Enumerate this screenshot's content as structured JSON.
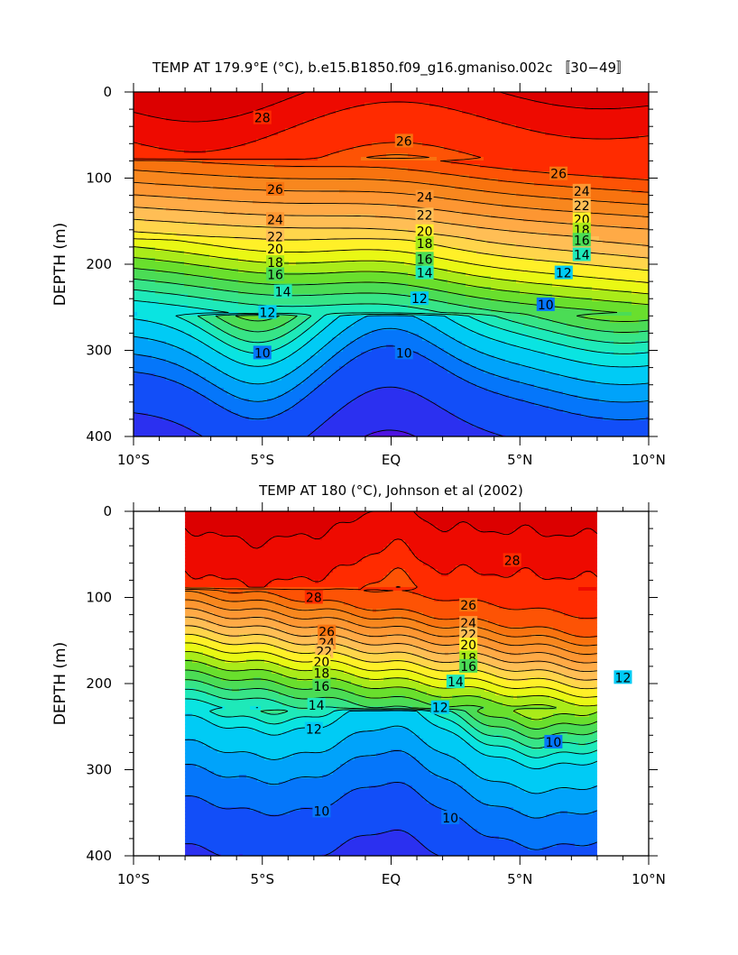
{
  "chart_data": [
    {
      "type": "contour",
      "title": "TEMP AT 179.9°E (°C), b.e15.B1850.f09_g16.gmaniso.002c 〚30−49〛",
      "xlabel": "",
      "ylabel": "DEPTH (m)",
      "x_ticks": [
        "10°S",
        "5°S",
        "EQ",
        "5°N",
        "10°N"
      ],
      "y_ticks": [
        "0",
        "100",
        "200",
        "300",
        "400"
      ],
      "xlim": [
        -10,
        10
      ],
      "ylim": [
        0,
        400
      ],
      "data_xrange": [
        -10,
        10
      ],
      "contour_interval": 1,
      "labeled_contours": [
        {
          "value": 28,
          "text": "28",
          "lat": -5.0,
          "depth": 30
        },
        {
          "value": 26,
          "text": "26",
          "lat": 0.5,
          "depth": 57
        },
        {
          "value": 26,
          "text": "26",
          "lat": 6.5,
          "depth": 95
        },
        {
          "value": 26,
          "text": "26",
          "lat": -4.5,
          "depth": 113
        },
        {
          "value": 24,
          "text": "24",
          "lat": 1.3,
          "depth": 122
        },
        {
          "value": 24,
          "text": "24",
          "lat": 7.4,
          "depth": 115
        },
        {
          "value": 24,
          "text": "24",
          "lat": -4.5,
          "depth": 148
        },
        {
          "value": 22,
          "text": "22",
          "lat": 1.3,
          "depth": 143
        },
        {
          "value": 22,
          "text": "22",
          "lat": 7.4,
          "depth": 132
        },
        {
          "value": 22,
          "text": "22",
          "lat": -4.5,
          "depth": 168
        },
        {
          "value": 20,
          "text": "20",
          "lat": 1.3,
          "depth": 162
        },
        {
          "value": 20,
          "text": "20",
          "lat": 7.4,
          "depth": 148
        },
        {
          "value": 20,
          "text": "20",
          "lat": -4.5,
          "depth": 182
        },
        {
          "value": 18,
          "text": "18",
          "lat": 1.3,
          "depth": 176
        },
        {
          "value": 18,
          "text": "18",
          "lat": 7.4,
          "depth": 160
        },
        {
          "value": 18,
          "text": "18",
          "lat": -4.5,
          "depth": 198
        },
        {
          "value": 16,
          "text": "16",
          "lat": 1.3,
          "depth": 194
        },
        {
          "value": 16,
          "text": "16",
          "lat": 7.4,
          "depth": 172
        },
        {
          "value": 16,
          "text": "16",
          "lat": -4.5,
          "depth": 212
        },
        {
          "value": 14,
          "text": "14",
          "lat": 1.3,
          "depth": 210
        },
        {
          "value": 14,
          "text": "14",
          "lat": 7.4,
          "depth": 189
        },
        {
          "value": 14,
          "text": "14",
          "lat": -4.2,
          "depth": 232
        },
        {
          "value": 12,
          "text": "12",
          "lat": 1.1,
          "depth": 240
        },
        {
          "value": 12,
          "text": "12",
          "lat": 6.7,
          "depth": 210
        },
        {
          "value": 12,
          "text": "12",
          "lat": -4.8,
          "depth": 256
        },
        {
          "value": 10,
          "text": "10",
          "lat": 0.5,
          "depth": 303
        },
        {
          "value": 10,
          "text": "10",
          "lat": 6.0,
          "depth": 247
        },
        {
          "value": 10,
          "text": "10",
          "lat": -5.0,
          "depth": 303
        }
      ]
    },
    {
      "type": "contour",
      "title": "TEMP AT 180 (°C), Johnson et al (2002)",
      "xlabel": "",
      "ylabel": "DEPTH (m)",
      "x_ticks": [
        "10°S",
        "5°S",
        "EQ",
        "5°N",
        "10°N"
      ],
      "y_ticks": [
        "0",
        "100",
        "200",
        "300",
        "400"
      ],
      "xlim": [
        -10,
        10
      ],
      "ylim": [
        0,
        400
      ],
      "data_xrange": [
        -8,
        8
      ],
      "contour_interval": 1,
      "labeled_contours": [
        {
          "value": 28,
          "text": "28",
          "lat": 4.7,
          "depth": 57
        },
        {
          "value": 28,
          "text": "28",
          "lat": -3.0,
          "depth": 100
        },
        {
          "value": 26,
          "text": "26",
          "lat": 3.0,
          "depth": 109
        },
        {
          "value": 26,
          "text": "26",
          "lat": -2.5,
          "depth": 140
        },
        {
          "value": 24,
          "text": "24",
          "lat": 3.0,
          "depth": 130
        },
        {
          "value": 24,
          "text": "24",
          "lat": -2.5,
          "depth": 153
        },
        {
          "value": 22,
          "text": "22",
          "lat": 3.0,
          "depth": 143
        },
        {
          "value": 22,
          "text": "22",
          "lat": -2.6,
          "depth": 163
        },
        {
          "value": 20,
          "text": "20",
          "lat": 3.0,
          "depth": 155
        },
        {
          "value": 20,
          "text": "20",
          "lat": -2.7,
          "depth": 175
        },
        {
          "value": 18,
          "text": "18",
          "lat": 3.0,
          "depth": 170
        },
        {
          "value": 18,
          "text": "18",
          "lat": -2.7,
          "depth": 188
        },
        {
          "value": 16,
          "text": "16",
          "lat": 3.0,
          "depth": 180
        },
        {
          "value": 16,
          "text": "16",
          "lat": -2.7,
          "depth": 203
        },
        {
          "value": 14,
          "text": "14",
          "lat": 2.5,
          "depth": 198
        },
        {
          "value": 14,
          "text": "14",
          "lat": -2.9,
          "depth": 225
        },
        {
          "value": 12,
          "text": "12",
          "lat": 1.9,
          "depth": 228
        },
        {
          "value": 12,
          "text": "12",
          "lat": 9.0,
          "depth": 193
        },
        {
          "value": 12,
          "text": "12",
          "lat": -3.0,
          "depth": 253
        },
        {
          "value": 10,
          "text": "10",
          "lat": 6.3,
          "depth": 268
        },
        {
          "value": 10,
          "text": "10",
          "lat": -2.7,
          "depth": 348
        },
        {
          "value": 10,
          "text": "10",
          "lat": 2.3,
          "depth": 356
        }
      ]
    }
  ]
}
